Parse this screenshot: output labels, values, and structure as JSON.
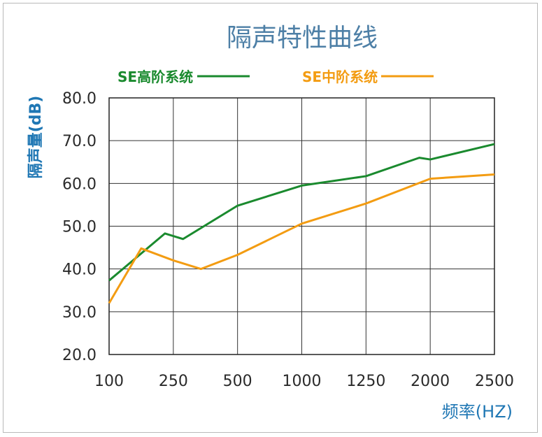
{
  "chart_data": {
    "type": "line",
    "title": "隔声特性曲线",
    "ylabel": "隔声量(dB)",
    "xlabel": "频率(HZ)",
    "categories": [
      "100",
      "250",
      "500",
      "1000",
      "1250",
      "2000",
      "2500"
    ],
    "ylim": [
      20,
      80
    ],
    "yticks": [
      "20.0",
      "30.0",
      "40.0",
      "50.0",
      "60.0",
      "70.0",
      "80.0"
    ],
    "grid": true,
    "legend": "top",
    "series": [
      {
        "name": "SE高阶系统",
        "color": "#1a8a2e",
        "x": [
          0,
          0.87,
          1.15,
          2,
          3,
          4,
          4.83,
          5,
          6
        ],
        "values": [
          37.3,
          48.3,
          47.0,
          54.8,
          59.5,
          61.7,
          66.0,
          65.6,
          69.2
        ]
      },
      {
        "name": "SE中阶系统",
        "color": "#f39c12",
        "x": [
          0,
          0.5,
          1,
          1.43,
          2,
          3,
          4,
          5,
          6
        ],
        "values": [
          32.0,
          44.8,
          42.0,
          40.0,
          43.3,
          50.6,
          55.3,
          61.1,
          62.1
        ]
      }
    ]
  }
}
